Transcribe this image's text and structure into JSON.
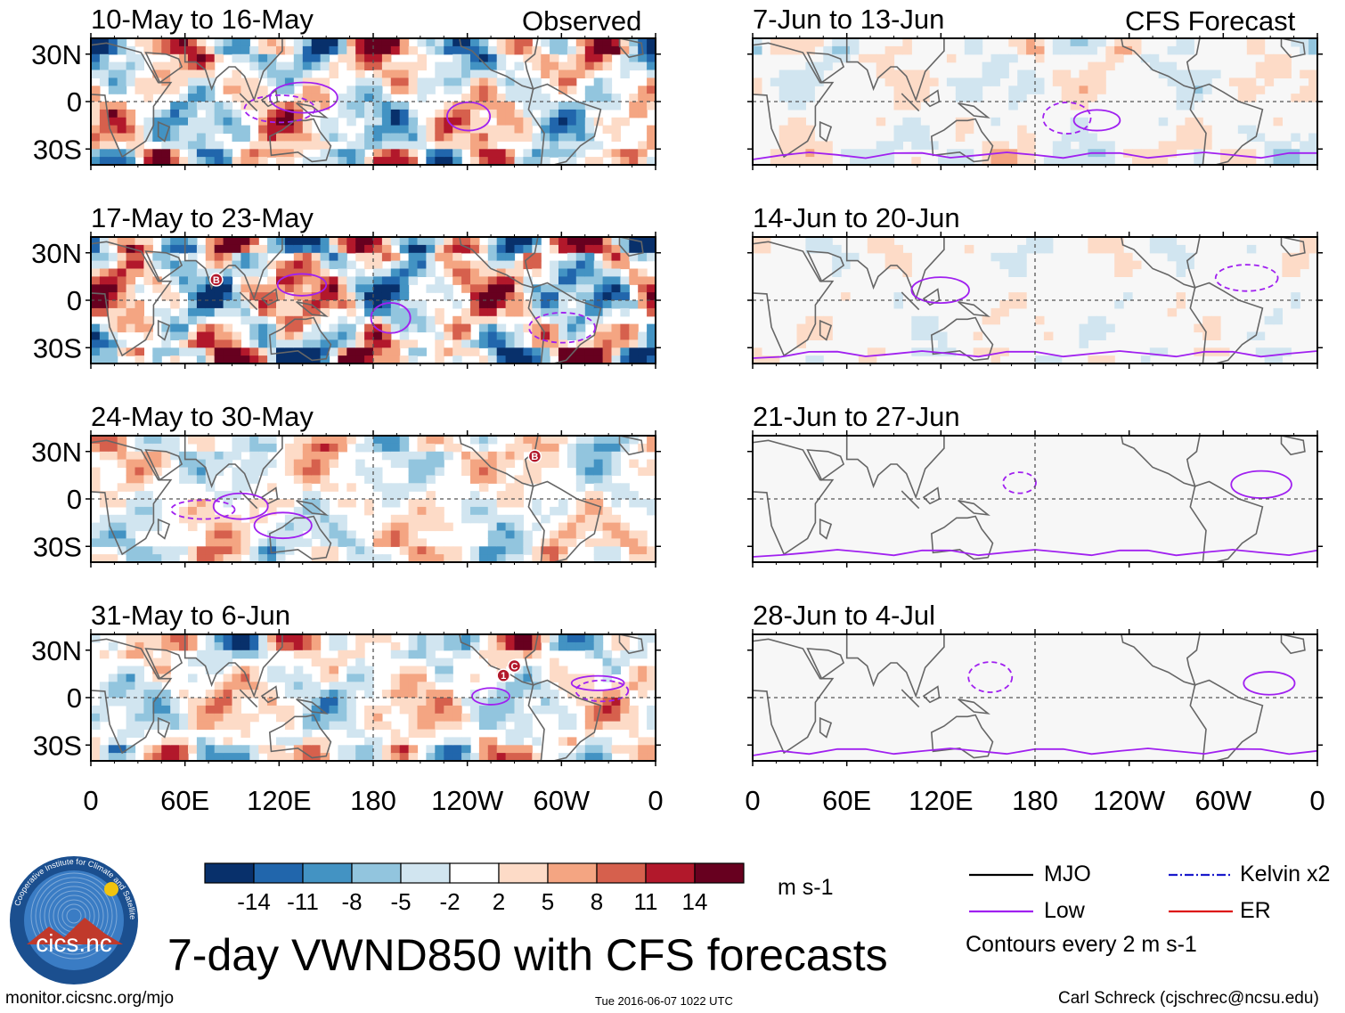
{
  "title": "7-day VWND850 with CFS forecasts",
  "site": "monitor.cicsnc.org/mjo",
  "timestamp": "Tue 2016-06-07 1022 UTC",
  "author": "Carl Schreck (cjschrec@ncsu.edu)",
  "logo": {
    "text": "cics.nc",
    "ring_text": "Cooperative Institute for Climate and Satellites"
  },
  "column_headers": {
    "observed": "Observed",
    "forecast": "CFS Forecast"
  },
  "colorbar": {
    "unit": "m s-1",
    "levels": [
      "-14",
      "-11",
      "-8",
      "-5",
      "-2",
      "2",
      "5",
      "8",
      "11",
      "14"
    ],
    "colors": [
      "#08306b",
      "#2166ac",
      "#4393c3",
      "#92c5de",
      "#d1e5f0",
      "#ffffff",
      "#fddbc7",
      "#f4a582",
      "#d6604d",
      "#b2182b",
      "#67001f"
    ]
  },
  "legend": {
    "items": [
      {
        "label": "MJO",
        "color": "#000000",
        "style": "solid"
      },
      {
        "label": "Kelvin x2",
        "color": "#1a1acc",
        "style": "dashdot"
      },
      {
        "label": "Low",
        "color": "#a020f0",
        "style": "solid"
      },
      {
        "label": "ER",
        "color": "#dd1111",
        "style": "solid"
      }
    ],
    "note": "Contours every 2 m s-1"
  },
  "chart_data": {
    "type": "heatmap",
    "variable": "850-hPa meridional wind anomaly (7-day mean)",
    "xaxis": {
      "ticks": [
        "0",
        "60E",
        "120E",
        "180",
        "120W",
        "60W",
        "0"
      ],
      "range_deg_east": [
        0,
        360
      ]
    },
    "yaxis": {
      "ticks": [
        "30N",
        "0",
        "30S"
      ],
      "range_deg": [
        -40,
        40
      ]
    },
    "observed_panels": [
      {
        "label": "10-May to 16-May",
        "amplitude": 1.0,
        "markers": []
      },
      {
        "label": "17-May to 23-May",
        "amplitude": 1.35,
        "markers": [
          {
            "label": "B",
            "lon": 80,
            "lat": 13
          }
        ]
      },
      {
        "label": "24-May to 30-May",
        "amplitude": 0.6,
        "markers": [
          {
            "label": "B",
            "lon": 283,
            "lat": 27
          }
        ]
      },
      {
        "label": "31-May to 6-Jun",
        "amplitude": 0.75,
        "markers": [
          {
            "label": "1",
            "lon": 263,
            "lat": 14
          },
          {
            "label": "C",
            "lon": 270,
            "lat": 20
          }
        ]
      }
    ],
    "forecast_panels": [
      {
        "label": "7-Jun to 13-Jun",
        "amplitude": 0.35
      },
      {
        "label": "14-Jun to 20-Jun",
        "amplitude": 0.22
      },
      {
        "label": "21-Jun to 27-Jun",
        "amplitude": 0.0
      },
      {
        "label": "28-Jun to 4-Jul",
        "amplitude": 0.05
      }
    ]
  }
}
